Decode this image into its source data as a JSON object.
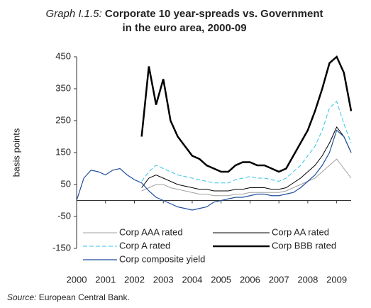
{
  "chart_data": {
    "type": "line",
    "title_label": "Graph I.1.5:",
    "title": "Corporate 10 year-spreads vs. Government in the euro area, 2000-09",
    "ylabel": "basis points",
    "source_label": "Source:",
    "source": "European Central Bank.",
    "x": [
      2000,
      2000.25,
      2000.5,
      2000.75,
      2001,
      2001.25,
      2001.5,
      2001.75,
      2002,
      2002.25,
      2002.5,
      2002.75,
      2003,
      2003.25,
      2003.5,
      2003.75,
      2004,
      2004.25,
      2004.5,
      2004.75,
      2005,
      2005.25,
      2005.5,
      2005.75,
      2006,
      2006.25,
      2006.5,
      2006.75,
      2007,
      2007.25,
      2007.5,
      2007.75,
      2008,
      2008.25,
      2008.5,
      2008.75,
      2009,
      2009.25,
      2009.5
    ],
    "xlim": [
      2000,
      2009.5
    ],
    "xticks": [
      2000,
      2001,
      2002,
      2003,
      2004,
      2005,
      2006,
      2007,
      2008,
      2009
    ],
    "ylim": [
      -150,
      450
    ],
    "yticks": [
      -150,
      -50,
      50,
      150,
      250,
      350,
      450
    ],
    "series": [
      {
        "name": "Corp AAA rated",
        "color": "#a0a0a0",
        "width": 1,
        "dashed": false,
        "values": [
          null,
          null,
          null,
          null,
          null,
          null,
          null,
          null,
          null,
          30,
          40,
          50,
          50,
          40,
          35,
          30,
          25,
          20,
          20,
          15,
          15,
          15,
          20,
          20,
          25,
          25,
          25,
          25,
          25,
          30,
          40,
          50,
          60,
          70,
          90,
          110,
          130,
          100,
          70
        ]
      },
      {
        "name": "Corp AA rated",
        "color": "#000000",
        "width": 1,
        "dashed": false,
        "values": [
          null,
          null,
          null,
          null,
          null,
          null,
          null,
          null,
          null,
          40,
          70,
          80,
          70,
          60,
          50,
          45,
          40,
          35,
          35,
          30,
          30,
          30,
          35,
          35,
          40,
          40,
          40,
          35,
          35,
          40,
          55,
          70,
          90,
          110,
          140,
          180,
          230,
          200,
          150
        ]
      },
      {
        "name": "Corp A rated",
        "color": "#33c3e6",
        "width": 1,
        "dashed": true,
        "values": [
          null,
          null,
          null,
          null,
          null,
          null,
          null,
          null,
          null,
          60,
          90,
          110,
          100,
          90,
          80,
          75,
          70,
          65,
          60,
          55,
          55,
          55,
          65,
          70,
          75,
          70,
          70,
          65,
          60,
          70,
          90,
          110,
          140,
          170,
          220,
          290,
          310,
          240,
          180
        ]
      },
      {
        "name": "Corp BBB rated",
        "color": "#000000",
        "width": 2.5,
        "dashed": false,
        "values": [
          null,
          null,
          null,
          null,
          null,
          null,
          null,
          null,
          null,
          200,
          420,
          300,
          380,
          250,
          200,
          170,
          140,
          130,
          110,
          100,
          90,
          90,
          110,
          120,
          120,
          110,
          110,
          100,
          90,
          100,
          140,
          180,
          220,
          280,
          350,
          430,
          450,
          400,
          280
        ]
      },
      {
        "name": "Corp composite yield",
        "color": "#1f4e9e",
        "width": 1.2,
        "dashed": false,
        "values": [
          0,
          70,
          95,
          90,
          80,
          95,
          100,
          80,
          65,
          55,
          30,
          10,
          0,
          -10,
          -20,
          -25,
          -30,
          -25,
          -20,
          -5,
          0,
          5,
          10,
          10,
          15,
          20,
          20,
          15,
          15,
          20,
          25,
          40,
          60,
          80,
          110,
          150,
          220,
          200,
          150
        ]
      }
    ]
  }
}
